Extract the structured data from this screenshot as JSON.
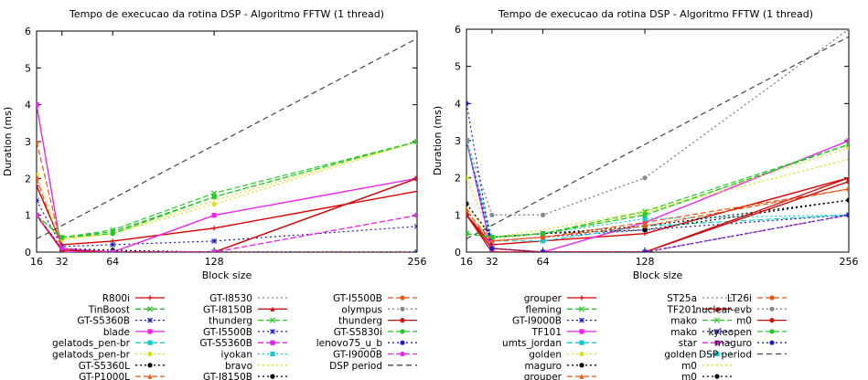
{
  "chart_data": [
    {
      "type": "line",
      "title": "Tempo de execucao da rotina DSP - Algoritmo FFTW (1 thread)",
      "xlabel": "Block size",
      "ylabel": "Duration (ms)",
      "xlim": [
        16,
        256
      ],
      "ylim": [
        0,
        6
      ],
      "xticks": [
        16,
        32,
        64,
        128,
        256
      ],
      "yticks": [
        0,
        1,
        2,
        3,
        4,
        5,
        6
      ],
      "grid": false,
      "legend_position": "bottom",
      "series": [
        {
          "name": "R800i",
          "color": "#dd0000",
          "dash": "",
          "marker": "plus",
          "values": [
            1.8,
            0.2,
            0.3,
            0.65,
            1.65
          ]
        },
        {
          "name": "TinBoost",
          "color": "#22bb22",
          "dash": "6,3",
          "marker": "x",
          "values": [
            1.0,
            0.4,
            0.55,
            1.5,
            3.0
          ]
        },
        {
          "name": "GT-S5360B",
          "color": "#1c1ccc",
          "dash": "2,3",
          "marker": "star",
          "values": [
            1.4,
            0.15,
            0.2,
            0.3,
            0.7
          ]
        },
        {
          "name": "blade",
          "color": "#ee22ee",
          "dash": "",
          "marker": "square",
          "values": [
            4.0,
            0.0,
            0.0,
            1.0,
            2.0
          ]
        },
        {
          "name": "gelatods_pen-br",
          "color": "#11cccc",
          "dash": "6,3",
          "marker": "square",
          "values": [
            1.0,
            0.1,
            0.0,
            0.0,
            0.0
          ]
        },
        {
          "name": "gelatods_pen-br",
          "color": "#dddd22",
          "dash": "2,3",
          "marker": "circle",
          "values": [
            2.1,
            0.35,
            0.5,
            1.3,
            3.0
          ]
        },
        {
          "name": "GT-S5360L",
          "color": "#000000",
          "dash": "2,3",
          "marker": "circle",
          "values": [
            1.0,
            0.1,
            0.05,
            0.0,
            0.0
          ]
        },
        {
          "name": "GT-P1000L",
          "color": "#ee5511",
          "dash": "6,3",
          "marker": "triangle",
          "values": [
            3.0,
            0.1,
            0.0,
            0.0,
            0.0
          ]
        },
        {
          "name": "GT-I8530",
          "color": "#888888",
          "dash": "2,3",
          "marker": "none",
          "values": [
            1.0,
            0.1,
            0.0,
            0.0,
            0.0
          ]
        },
        {
          "name": "GT-I8150B",
          "color": "#cc1111",
          "dash": "",
          "marker": "triangle",
          "values": [
            1.0,
            0.05,
            0.0,
            0.0,
            2.0
          ]
        },
        {
          "name": "thunderg",
          "color": "#22cc22",
          "dash": "6,3",
          "marker": "x",
          "values": [
            1.0,
            0.4,
            0.6,
            1.6,
            3.0
          ]
        },
        {
          "name": "GT-I5500B",
          "color": "#1c1ccc",
          "dash": "2,3",
          "marker": "star",
          "values": [
            1.0,
            0.1,
            0.0,
            0.0,
            0.0
          ]
        },
        {
          "name": "GT-S5360B",
          "color": "#dd22dd",
          "dash": "6,3",
          "marker": "square",
          "values": [
            1.0,
            0.1,
            0.0,
            0.0,
            1.0
          ]
        },
        {
          "name": "iyokan",
          "color": "#11cccc",
          "dash": "2,3",
          "marker": "square",
          "values": [
            1.0,
            0.1,
            0.0,
            0.0,
            0.0
          ]
        },
        {
          "name": "bravo",
          "color": "#dddd00",
          "dash": "2,3",
          "marker": "none",
          "values": [
            1.0,
            0.35,
            0.5,
            1.4,
            3.0
          ]
        },
        {
          "name": "GT-I8150B",
          "color": "#000000",
          "dash": "2,3",
          "marker": "circle",
          "values": [
            1.0,
            0.05,
            0.0,
            0.0,
            0.0
          ]
        },
        {
          "name": "GT-I5500B",
          "color": "#ee5511",
          "dash": "6,3",
          "marker": "circle",
          "values": [
            2.0,
            0.1,
            0.0,
            0.0,
            0.0
          ]
        },
        {
          "name": "olympus",
          "color": "#888888",
          "dash": "2,3",
          "marker": "circle",
          "values": [
            1.0,
            0.1,
            0.0,
            0.0,
            0.0
          ]
        },
        {
          "name": "thunderg",
          "color": "#cc1111",
          "dash": "",
          "marker": "circle",
          "values": [
            1.0,
            0.05,
            0.0,
            0.0,
            2.0
          ]
        },
        {
          "name": "GT-S5830i",
          "color": "#22cc22",
          "dash": "6,3",
          "marker": "circle",
          "values": [
            1.0,
            0.4,
            0.5,
            1.5,
            3.0
          ]
        },
        {
          "name": "lenovo75_u_b",
          "color": "#1c1ccc",
          "dash": "2,3",
          "marker": "circle",
          "values": [
            1.0,
            0.1,
            0.0,
            0.0,
            0.0
          ]
        },
        {
          "name": "GT-I9000B",
          "color": "#ee22ee",
          "dash": "6,3",
          "marker": "circle",
          "values": [
            1.0,
            0.1,
            0.0,
            0.0,
            1.0
          ]
        },
        {
          "name": "DSP period",
          "color": "#444444",
          "dash": "6,4",
          "marker": "none",
          "values": [
            0.36,
            0.72,
            1.45,
            2.9,
            5.8
          ]
        }
      ]
    },
    {
      "type": "line",
      "title": "Tempo de execucao da rotina DSP - Algoritmo FFTW (1 thread)",
      "xlabel": "Block size",
      "ylabel": "Duration (ms)",
      "xlim": [
        16,
        256
      ],
      "ylim": [
        0,
        6
      ],
      "xticks": [
        16,
        32,
        64,
        128,
        256
      ],
      "yticks": [
        0,
        1,
        2,
        3,
        4,
        5,
        6
      ],
      "grid": false,
      "legend_position": "bottom",
      "series": [
        {
          "name": "grouper",
          "color": "#dd0000",
          "dash": "",
          "marker": "plus",
          "values": [
            1.0,
            0.2,
            0.3,
            0.5,
            2.0
          ]
        },
        {
          "name": "fleming",
          "color": "#22cc22",
          "dash": "6,3",
          "marker": "x",
          "values": [
            0.5,
            0.4,
            0.5,
            1.0,
            2.9
          ]
        },
        {
          "name": "GT-I9000B",
          "color": "#1c1ccc",
          "dash": "2,3",
          "marker": "star",
          "values": [
            3.0,
            0.3,
            0.4,
            0.6,
            1.0
          ]
        },
        {
          "name": "TF101",
          "color": "#ee22ee",
          "dash": "",
          "marker": "square",
          "values": [
            3.0,
            0.0,
            0.0,
            0.8,
            3.0
          ]
        },
        {
          "name": "umts_jordan",
          "color": "#11cccc",
          "dash": "6,3",
          "marker": "square",
          "values": [
            3.0,
            0.3,
            0.3,
            0.7,
            1.0
          ]
        },
        {
          "name": "golden",
          "color": "#dddd22",
          "dash": "2,3",
          "marker": "circle",
          "values": [
            2.0,
            0.35,
            0.5,
            1.05,
            2.8
          ]
        },
        {
          "name": "maguro",
          "color": "#000000",
          "dash": "2,3",
          "marker": "circle",
          "values": [
            1.3,
            0.4,
            0.5,
            0.7,
            1.4
          ]
        },
        {
          "name": "grouper",
          "color": "#ee5511",
          "dash": "6,3",
          "marker": "triangle",
          "values": [
            1.0,
            0.3,
            0.4,
            0.8,
            1.7
          ]
        },
        {
          "name": "ST25a",
          "color": "#888888",
          "dash": "2,3",
          "marker": "none",
          "values": [
            3.0,
            1.0,
            1.0,
            2.0,
            6.0
          ]
        },
        {
          "name": "TF201",
          "color": "#cc1111",
          "dash": "",
          "marker": "triangle",
          "values": [
            1.0,
            0.0,
            0.0,
            0.0,
            2.0
          ]
        },
        {
          "name": "mako",
          "color": "#22cc22",
          "dash": "6,3",
          "marker": "x",
          "values": [
            0.5,
            0.4,
            0.5,
            1.1,
            2.9
          ]
        },
        {
          "name": "mako",
          "color": "#1c1ccc",
          "dash": "2,3",
          "marker": "star",
          "values": [
            3.0,
            0.1,
            0.0,
            0.0,
            1.0
          ]
        },
        {
          "name": "star",
          "color": "#dd22dd",
          "dash": "6,3",
          "marker": "square",
          "values": [
            1.0,
            0.1,
            0.0,
            0.0,
            1.0
          ]
        },
        {
          "name": "golden",
          "color": "#11cccc",
          "dash": "2,3",
          "marker": "square",
          "values": [
            3.0,
            0.4,
            0.5,
            0.9,
            1.0
          ]
        },
        {
          "name": "m0",
          "color": "#dddd00",
          "dash": "2,3",
          "marker": "none",
          "values": [
            1.2,
            0.4,
            0.6,
            1.1,
            2.5
          ]
        },
        {
          "name": "m0",
          "color": "#000000",
          "dash": "2,3",
          "marker": "circle",
          "values": [
            1.3,
            0.4,
            0.5,
            0.6,
            1.4
          ]
        },
        {
          "name": "LT26i",
          "color": "#ee5511",
          "dash": "6,3",
          "marker": "circle",
          "values": [
            1.1,
            0.3,
            0.4,
            0.7,
            1.7
          ]
        },
        {
          "name": "nuclear-evb",
          "color": "#888888",
          "dash": "2,3",
          "marker": "circle",
          "values": [
            3.0,
            1.0,
            1.0,
            2.0,
            6.0
          ]
        },
        {
          "name": "m0",
          "color": "#cc1111",
          "dash": "",
          "marker": "circle",
          "values": [
            1.0,
            0.1,
            0.0,
            0.0,
            1.9
          ]
        },
        {
          "name": "kyleopen",
          "color": "#22cc22",
          "dash": "6,3",
          "marker": "circle",
          "values": [
            0.5,
            0.4,
            0.5,
            1.0,
            2.9
          ]
        },
        {
          "name": "maguro",
          "color": "#1c1ccc",
          "dash": "2,3",
          "marker": "circle",
          "values": [
            4.0,
            0.1,
            0.0,
            0.0,
            1.0
          ]
        },
        {
          "name": "DSP period",
          "color": "#444444",
          "dash": "6,4",
          "marker": "none",
          "values": [
            0.36,
            0.72,
            1.45,
            2.9,
            5.8
          ]
        }
      ]
    }
  ]
}
